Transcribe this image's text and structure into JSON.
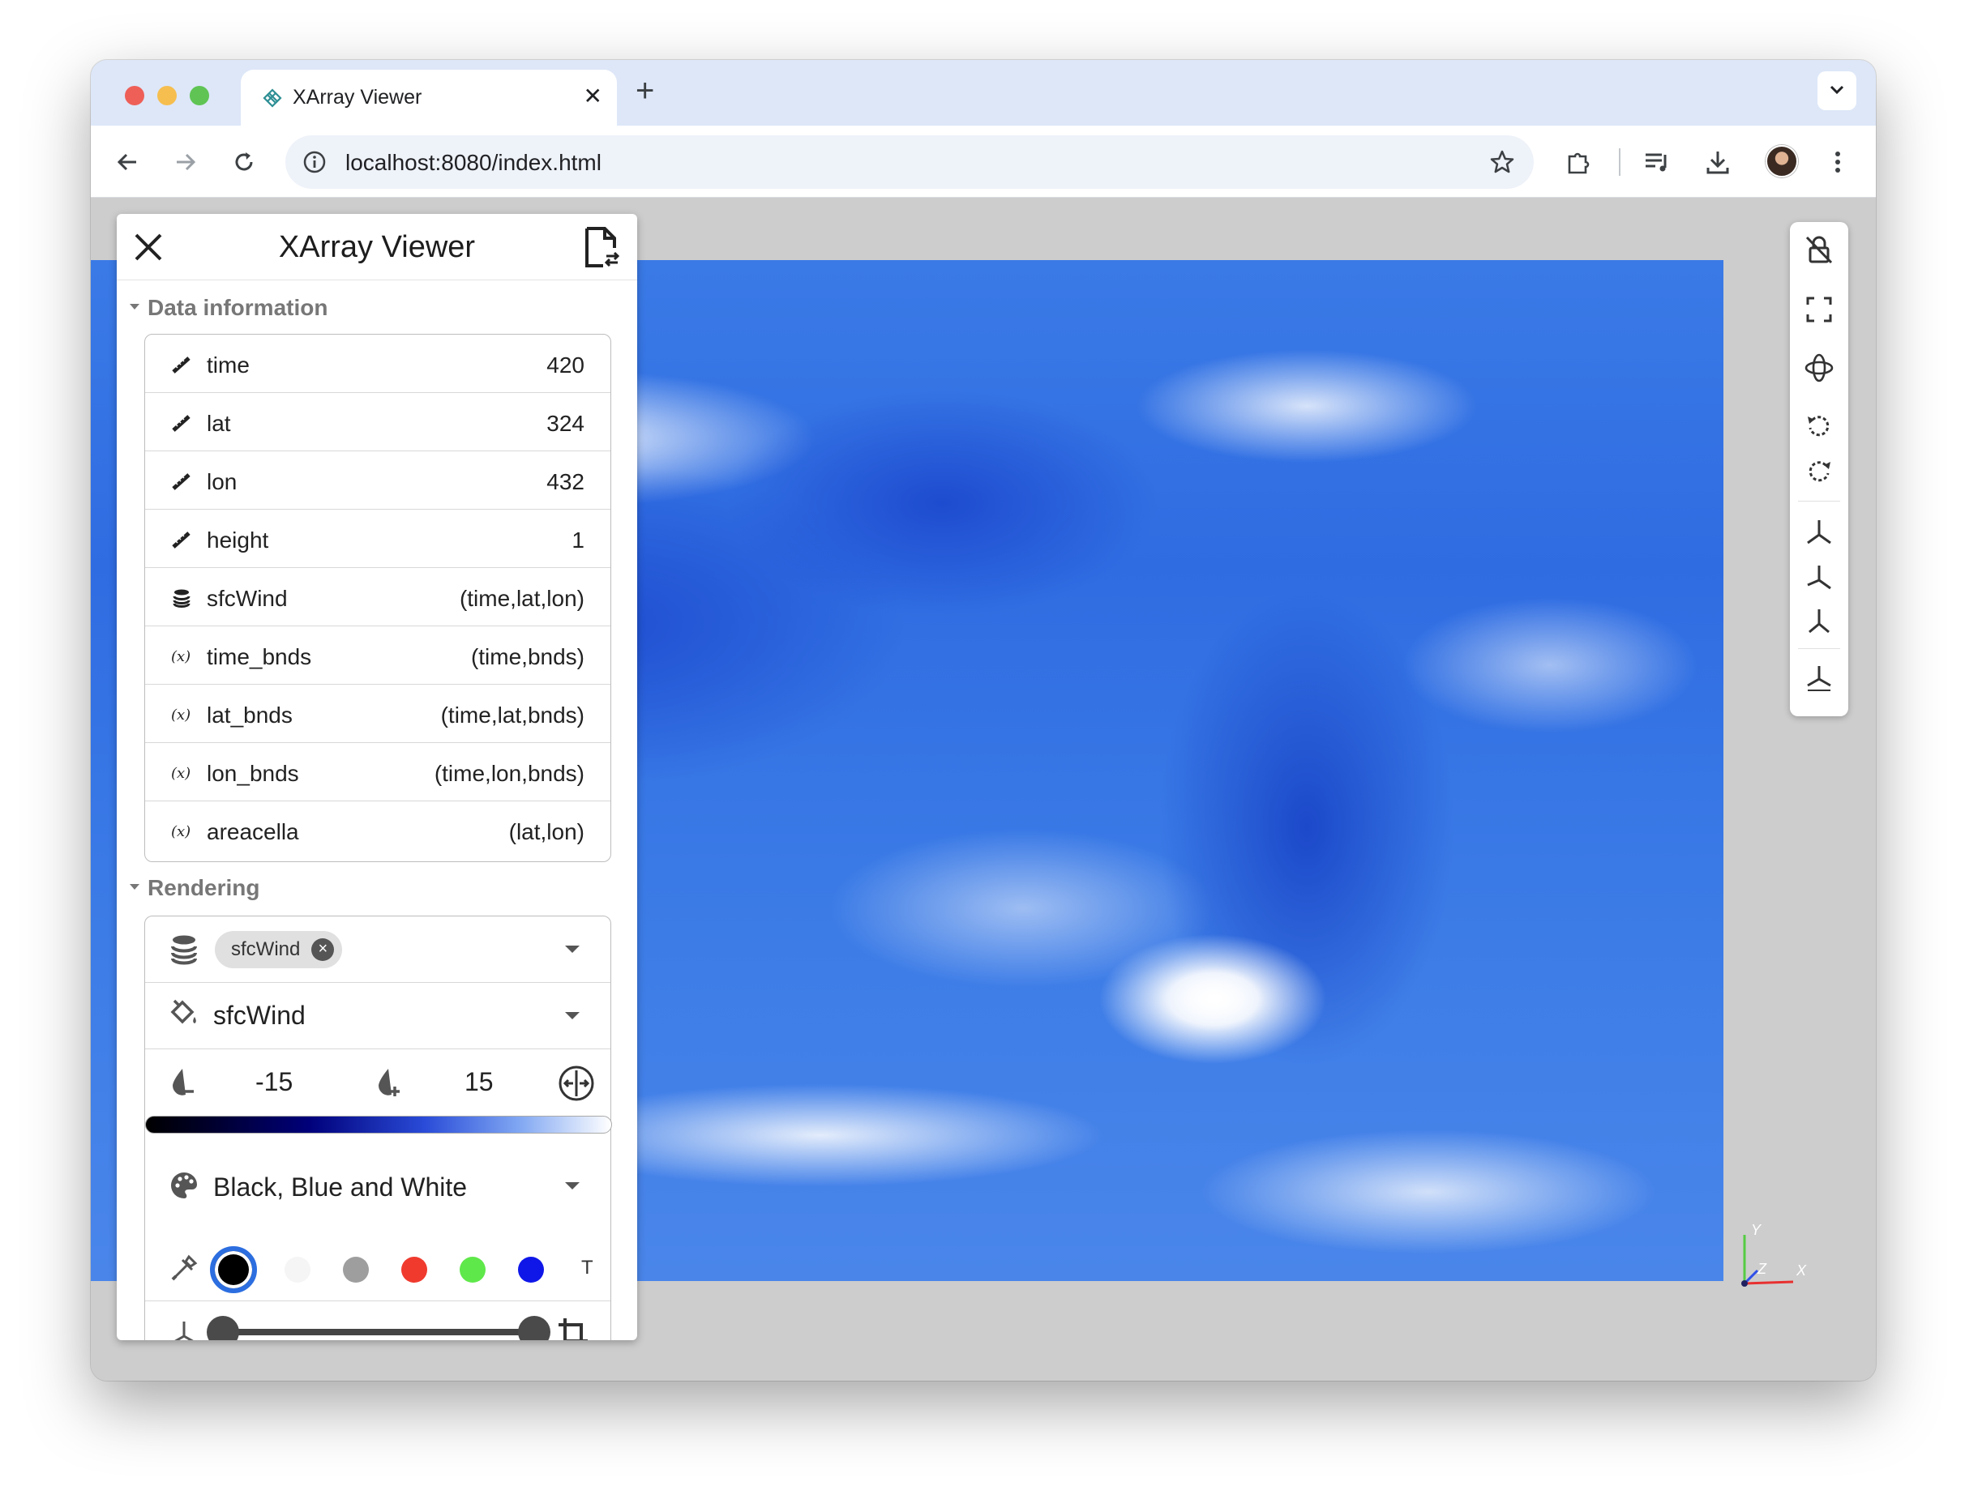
{
  "browser": {
    "tab_title": "XArray Viewer",
    "tab_close": "✕",
    "new_tab": "+",
    "url": "localhost:8080/index.html"
  },
  "panel": {
    "title": "XArray Viewer",
    "data_section_title": "Data information",
    "rendering_section_title": "Rendering",
    "data_rows": [
      {
        "icon": "ruler-icon",
        "name": "time",
        "value": "420"
      },
      {
        "icon": "ruler-icon",
        "name": "lat",
        "value": "324"
      },
      {
        "icon": "ruler-icon",
        "name": "lon",
        "value": "432"
      },
      {
        "icon": "ruler-icon",
        "name": "height",
        "value": "1"
      },
      {
        "icon": "database-icon",
        "name": "sfcWind",
        "value": "(time,lat,lon)"
      },
      {
        "icon": "variable-icon",
        "name": "time_bnds",
        "value": "(time,bnds)"
      },
      {
        "icon": "variable-icon",
        "name": "lat_bnds",
        "value": "(time,lat,bnds)"
      },
      {
        "icon": "variable-icon",
        "name": "lon_bnds",
        "value": "(time,lon,bnds)"
      },
      {
        "icon": "variable-icon",
        "name": "areacella",
        "value": "(lat,lon)"
      }
    ],
    "rendering": {
      "array_chip": "sfcWind",
      "color_by": "sfcWind",
      "range_min": "-15",
      "range_max": "15",
      "colormap": "Black, Blue and White",
      "swatches": [
        "#000000",
        "#f5f5f5",
        "#9e9e9e",
        "#f03a2e",
        "#5fe84a",
        "#0f17e8"
      ],
      "opacity_label": "T",
      "slice_min_fraction": 0.0,
      "slice_max_fraction": 1.0
    }
  },
  "axes": {
    "x": "X",
    "y": "Y",
    "z": "Z"
  },
  "colors": {
    "accent": "#2c6ee0",
    "map_blue": "#2f6ce2"
  }
}
